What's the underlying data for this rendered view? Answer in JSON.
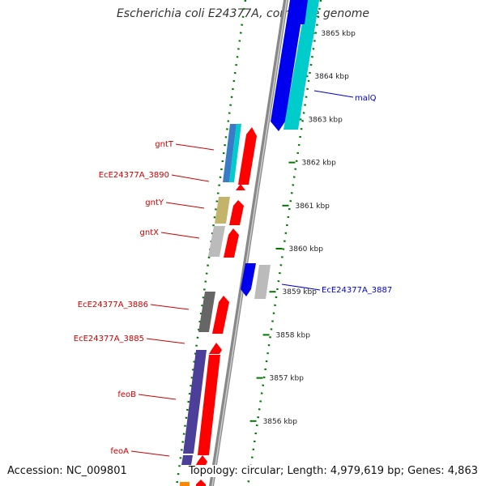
{
  "title": "Escherichia coli E24377A, complete genome",
  "footer": {
    "accession": "Accession: NC_009801",
    "topology": "Topology: circular; Length: 4,979,619 bp; Genes: 4,863"
  },
  "scale_ticks": [
    {
      "label": "3865 kbp"
    },
    {
      "label": "3864 kbp"
    },
    {
      "label": "3863 kbp"
    },
    {
      "label": "3862 kbp"
    },
    {
      "label": "3861 kbp"
    },
    {
      "label": "3860 kbp"
    },
    {
      "label": "3859 kbp"
    },
    {
      "label": "3858 kbp"
    },
    {
      "label": "3857 kbp"
    },
    {
      "label": "3856 kbp"
    }
  ],
  "gene_labels_left": [
    {
      "name": "gntT"
    },
    {
      "name": "EcE24377A_3890"
    },
    {
      "name": "gntY"
    },
    {
      "name": "gntX"
    },
    {
      "name": "EcE24377A_3886"
    },
    {
      "name": "EcE24377A_3885"
    },
    {
      "name": "feoB"
    },
    {
      "name": "feoA"
    }
  ],
  "gene_labels_right": [
    {
      "name": "malQ"
    },
    {
      "name": "EcE24377A_3887"
    }
  ],
  "colors": {
    "forward_gene": "#ff0000",
    "reverse_gene": "#0000ee",
    "cog_cyan": "#00cccc",
    "cog_purple": "#4b3f99",
    "cog_olive": "#c2b46a",
    "cog_gray": "#bbbbbb",
    "cog_dark": "#666666",
    "backbone": "#888888",
    "dotted_guide": "#007700",
    "label_left": "#cc0000",
    "label_right": "#0000cc"
  }
}
